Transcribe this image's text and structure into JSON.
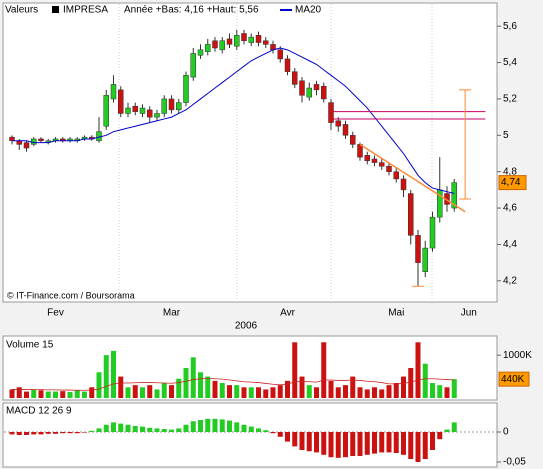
{
  "chart_data": [
    {
      "type": "candlestick",
      "header_label": "Valeurs",
      "title": "IMPRESA",
      "subtitle": "Année +Bas: 4,16 +Haut: 5,56",
      "ma_name": "MA20",
      "ma_color": "#0000cc",
      "source": "© IT-Finance.com / Boursorama",
      "year_label": "2006",
      "up_color": "#22cc22",
      "down_color": "#cc1111",
      "categories": [
        null,
        null,
        null,
        null,
        null,
        null,
        "Fev",
        null,
        null,
        null,
        null,
        null,
        null,
        null,
        null,
        null,
        null,
        null,
        null,
        null,
        null,
        null,
        "Mar",
        null,
        null,
        null,
        null,
        null,
        null,
        null,
        null,
        null,
        null,
        null,
        null,
        null,
        null,
        null,
        "Avr",
        null,
        null,
        null,
        null,
        null,
        null,
        null,
        null,
        null,
        null,
        null,
        null,
        null,
        null,
        "Mai",
        null,
        null,
        null,
        null,
        null,
        null,
        null,
        null,
        null,
        "Jun"
      ],
      "open": [
        4.99,
        4.97,
        4.96,
        4.95,
        4.98,
        4.96,
        4.97,
        4.98,
        4.97,
        4.97,
        4.98,
        4.99,
        4.97,
        5.05,
        5.2,
        5.25,
        5.12,
        5.16,
        5.12,
        5.14,
        5.1,
        5.12,
        5.2,
        5.14,
        5.18,
        5.32,
        5.44,
        5.46,
        5.52,
        5.47,
        5.53,
        5.49,
        5.56,
        5.51,
        5.55,
        5.52,
        5.5,
        5.47,
        5.42,
        5.35,
        5.3,
        5.21,
        5.28,
        5.27,
        5.18,
        5.08,
        5.06,
        5,
        4.95,
        4.89,
        4.87,
        4.85,
        4.83,
        4.8,
        4.76,
        4.68,
        4.45,
        4.25,
        4.38,
        4.55,
        4.68,
        4.6,
        null,
        null
      ],
      "high": [
        5,
        4.98,
        4.97,
        4.99,
        4.99,
        4.98,
        4.99,
        4.99,
        4.99,
        4.99,
        5,
        5,
        5.1,
        5.25,
        5.33,
        5.27,
        5.18,
        5.18,
        5.17,
        5.16,
        5.14,
        5.22,
        5.22,
        5.2,
        5.35,
        5.48,
        5.5,
        5.53,
        5.54,
        5.54,
        5.56,
        5.58,
        5.58,
        5.56,
        5.57,
        5.54,
        5.52,
        5.49,
        5.44,
        5.37,
        5.32,
        5.29,
        5.3,
        5.29,
        5.2,
        5.1,
        5.08,
        5.02,
        4.96,
        4.91,
        4.89,
        4.87,
        4.85,
        4.82,
        4.78,
        4.7,
        4.48,
        4.42,
        4.58,
        4.88,
        4.72,
        4.76,
        null,
        null
      ],
      "low": [
        4.95,
        4.92,
        4.91,
        4.94,
        4.96,
        4.95,
        4.96,
        4.96,
        4.96,
        4.96,
        4.97,
        4.97,
        4.96,
        5.03,
        5.18,
        5.1,
        5.1,
        5.11,
        5.1,
        5.07,
        5.08,
        5.1,
        5.12,
        5.12,
        5.16,
        5.3,
        5.42,
        5.44,
        5.46,
        5.45,
        5.48,
        5.47,
        5.5,
        5.49,
        5.49,
        5.48,
        5.45,
        5.4,
        5.33,
        5.26,
        5.18,
        5.19,
        5.22,
        5.18,
        5.03,
        5.02,
        4.98,
        4.93,
        4.86,
        4.84,
        4.83,
        4.81,
        4.78,
        4.74,
        4.66,
        4.4,
        4.17,
        4.22,
        4.36,
        4.52,
        4.58,
        4.58,
        null,
        null
      ],
      "close": [
        4.97,
        4.95,
        4.93,
        4.98,
        4.97,
        4.97,
        4.98,
        4.97,
        4.98,
        4.98,
        4.99,
        4.98,
        5.02,
        5.22,
        5.28,
        5.12,
        5.15,
        5.13,
        5.15,
        5.1,
        5.12,
        5.2,
        5.14,
        5.18,
        5.33,
        5.45,
        5.47,
        5.5,
        5.48,
        5.52,
        5.5,
        5.55,
        5.52,
        5.54,
        5.51,
        5.5,
        5.47,
        5.42,
        5.35,
        5.28,
        5.22,
        5.26,
        5.25,
        5.2,
        5.07,
        5.05,
        5,
        4.95,
        4.88,
        4.86,
        4.85,
        4.83,
        4.8,
        4.76,
        4.7,
        4.45,
        4.3,
        4.38,
        4.55,
        4.7,
        4.62,
        4.74,
        null,
        null
      ],
      "last_close_label": "4,74",
      "ma20": [
        4.97,
        4.97,
        4.97,
        4.96,
        4.96,
        4.96,
        4.97,
        4.97,
        4.97,
        4.97,
        4.98,
        4.98,
        4.99,
        5,
        5.02,
        5.03,
        5.04,
        5.05,
        5.06,
        5.07,
        5.08,
        5.09,
        5.1,
        5.12,
        5.14,
        5.17,
        5.2,
        5.23,
        5.26,
        5.29,
        5.32,
        5.35,
        5.38,
        5.41,
        5.43,
        5.45,
        5.47,
        5.48,
        5.47,
        5.45,
        5.43,
        5.41,
        5.39,
        5.36,
        5.33,
        5.3,
        5.27,
        5.23,
        5.19,
        5.15,
        5.1,
        5.05,
        5,
        4.95,
        4.9,
        4.84,
        4.78,
        4.74,
        4.71,
        4.7,
        4.69,
        4.68,
        null,
        null
      ],
      "ylim": [
        4.1,
        5.7
      ],
      "yticks": [
        {
          "value": 4.2,
          "label": "4,2"
        },
        {
          "value": 4.4,
          "label": "4,4"
        },
        {
          "value": 4.6,
          "label": "4,6"
        },
        {
          "value": 4.8,
          "label": "4,8"
        },
        5,
        {
          "value": 5.2,
          "label": "5,2"
        },
        {
          "value": 5.4,
          "label": "5,4"
        },
        {
          "value": 5.6,
          "label": "5,6"
        }
      ],
      "hlines": [
        5.13,
        5.09
      ],
      "hline_x": [
        44.3,
        65.3
      ],
      "hline_color": "#cc0066",
      "annotation_color": "#ff8833",
      "trendline": {
        "x": [
          48,
          62.5
        ],
        "y": [
          4.95,
          4.58
        ]
      },
      "bracket": {
        "x": 62.5,
        "low": 4.65,
        "high": 5.25
      },
      "low_marker": {
        "x": 56,
        "y": 4.17
      }
    },
    {
      "type": "volume",
      "title": "Volume 15",
      "values": [
        200,
        250,
        150,
        200,
        180,
        150,
        150,
        160,
        140,
        180,
        150,
        250,
        600,
        1000,
        1100,
        500,
        250,
        300,
        250,
        300,
        200,
        350,
        300,
        450,
        700,
        950,
        600,
        500,
        400,
        350,
        300,
        300,
        250,
        250,
        250,
        200,
        250,
        300,
        400,
        1300,
        500,
        300,
        250,
        1300,
        400,
        250,
        300,
        500,
        250,
        200,
        250,
        200,
        300,
        350,
        500,
        700,
        1300,
        800,
        350,
        300,
        250,
        440,
        null,
        null
      ],
      "last_label": "440K",
      "last_color": "#ff9900",
      "volume_ma": [
        200,
        200,
        200,
        195,
        195,
        190,
        190,
        185,
        185,
        180,
        180,
        185,
        210,
        270,
        330,
        350,
        350,
        355,
        360,
        360,
        355,
        350,
        345,
        360,
        390,
        430,
        450,
        460,
        450,
        440,
        420,
        400,
        380,
        370,
        360,
        340,
        320,
        310,
        320,
        380,
        390,
        380,
        370,
        420,
        420,
        410,
        410,
        420,
        410,
        390,
        380,
        360,
        330,
        330,
        340,
        370,
        420,
        450,
        450,
        440,
        430,
        420,
        null,
        null
      ],
      "ma_color": "#cc2222",
      "ylim": [
        0,
        1400
      ],
      "yticks": [
        {
          "value": 1000,
          "label": "1000K"
        }
      ]
    },
    {
      "type": "macd",
      "title": "MACD 12 26 9",
      "up_color": "#22cc22",
      "down_color": "#cc1111",
      "values": [
        -0.004,
        -0.005,
        -0.005,
        -0.004,
        -0.004,
        -0.003,
        -0.003,
        -0.002,
        -0.002,
        -0.002,
        -0.001,
        0.002,
        0.006,
        0.012,
        0.016,
        0.014,
        0.012,
        0.01,
        0.009,
        0.007,
        0.006,
        0.005,
        0.004,
        0.006,
        0.012,
        0.018,
        0.02,
        0.022,
        0.022,
        0.021,
        0.019,
        0.016,
        0.012,
        0.009,
        0.006,
        0.003,
        -0.002,
        -0.008,
        -0.016,
        -0.024,
        -0.03,
        -0.032,
        -0.034,
        -0.038,
        -0.042,
        -0.043,
        -0.042,
        -0.04,
        -0.04,
        -0.038,
        -0.036,
        -0.034,
        -0.034,
        -0.035,
        -0.038,
        -0.045,
        -0.05,
        -0.045,
        -0.03,
        -0.012,
        0.004,
        0.016,
        null,
        null
      ],
      "ylim": [
        -0.06,
        0.045
      ],
      "yticks": [
        0,
        {
          "value": -0.05,
          "label": "-0,05"
        }
      ]
    }
  ]
}
